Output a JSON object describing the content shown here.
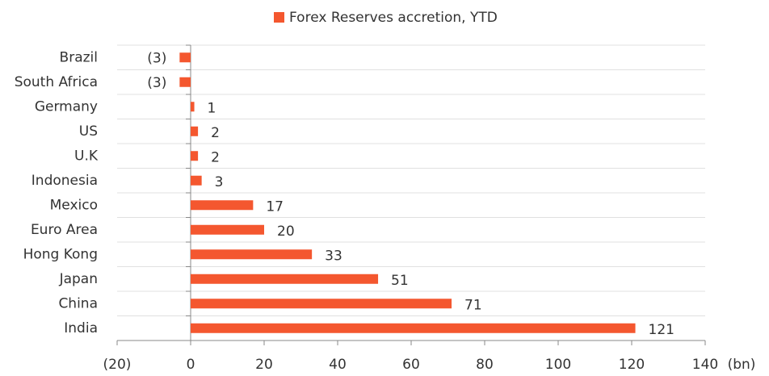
{
  "chart_data": {
    "type": "barh",
    "categories": [
      "Brazil",
      "South Africa",
      "Germany",
      "US",
      "U.K",
      "Indonesia",
      "Mexico",
      "Euro Area",
      "Hong Kong",
      "Japan",
      "China",
      "India"
    ],
    "series": [
      {
        "name": "Forex Reserves accretion, YTD",
        "color": "#f4572f",
        "values": [
          -3,
          -3,
          1,
          2,
          2,
          3,
          17,
          20,
          33,
          51,
          71,
          121
        ],
        "value_labels": [
          "(3)",
          "(3)",
          "1",
          "2",
          "2",
          "3",
          "17",
          "20",
          "33",
          "51",
          "71",
          "121"
        ]
      }
    ],
    "xlim": [
      -20,
      140
    ],
    "xticks": [
      {
        "value": -20,
        "label": "(20)"
      },
      0,
      20,
      40,
      60,
      80,
      100,
      120,
      140
    ],
    "x_label": "(bn)",
    "grid": true,
    "legend": "top"
  }
}
